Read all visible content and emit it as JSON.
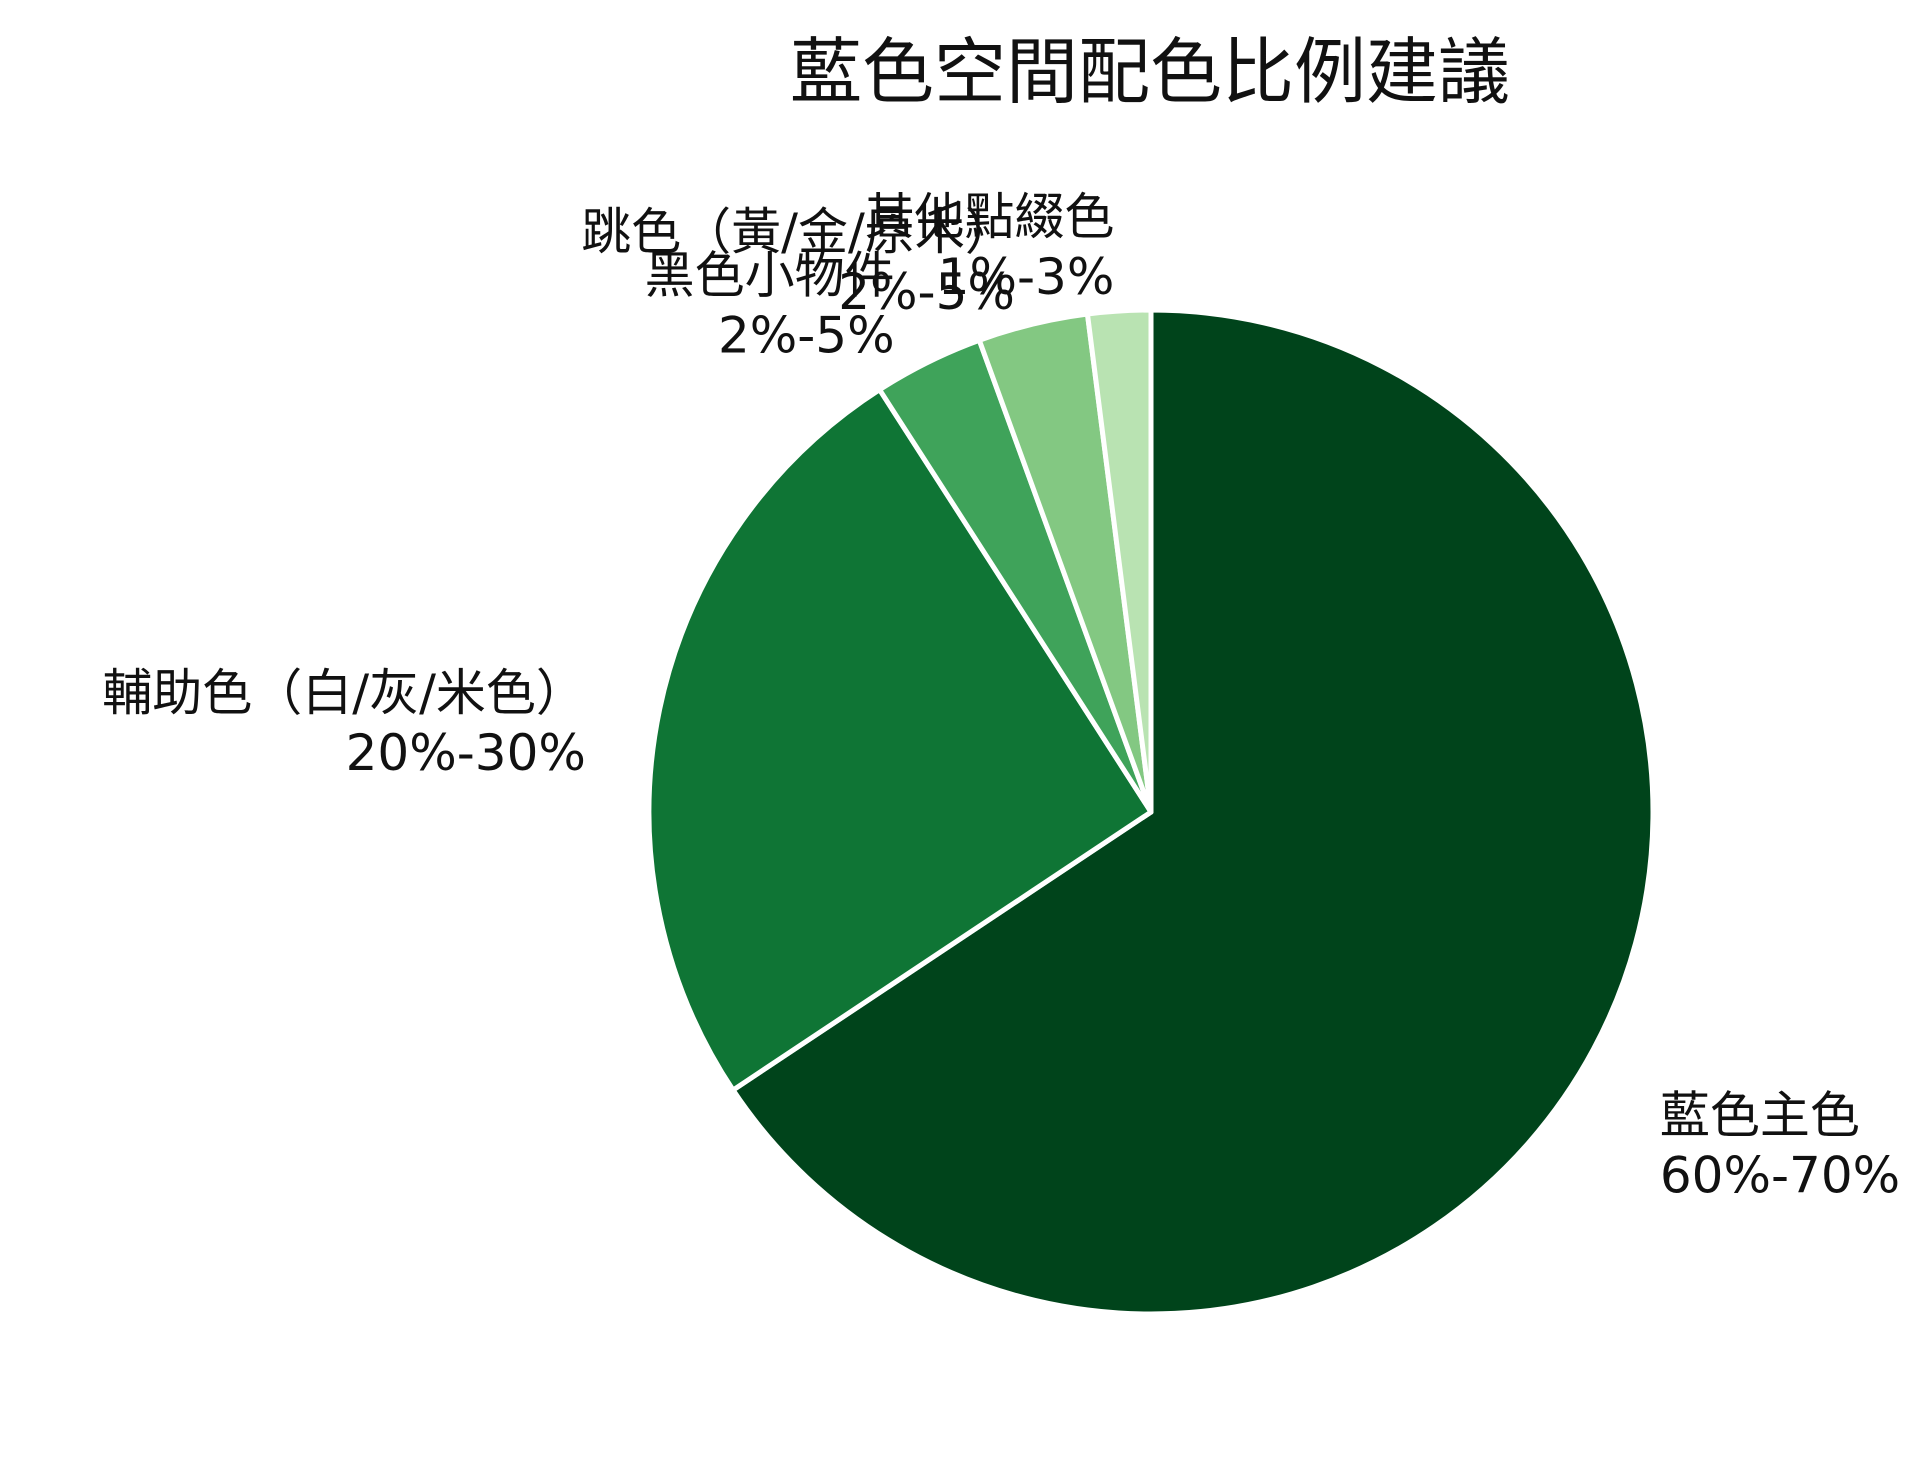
{
  "chart_data": {
    "type": "pie",
    "title": "藍色空間配色比例建議",
    "start": "12 o'clock",
    "direction": "clockwise",
    "slices": [
      {
        "label": "藍色主色",
        "value_text": "60%-70%",
        "value": 65,
        "color": "#00441b"
      },
      {
        "label": "輔助色（白/灰/米色）",
        "value_text": "20%-30%",
        "value": 25,
        "color": "#0f7535"
      },
      {
        "label": "黑色小物件",
        "value_text": "2%-5%",
        "value": 3.5,
        "color": "#3fa35a"
      },
      {
        "label": "跳色（黃/金/原木）",
        "value_text": "2%-5%",
        "value": 3.5,
        "color": "#83c882"
      },
      {
        "label": "其他點綴色",
        "value_text": "1%-3%",
        "value": 2,
        "color": "#b9e3b2"
      }
    ]
  }
}
